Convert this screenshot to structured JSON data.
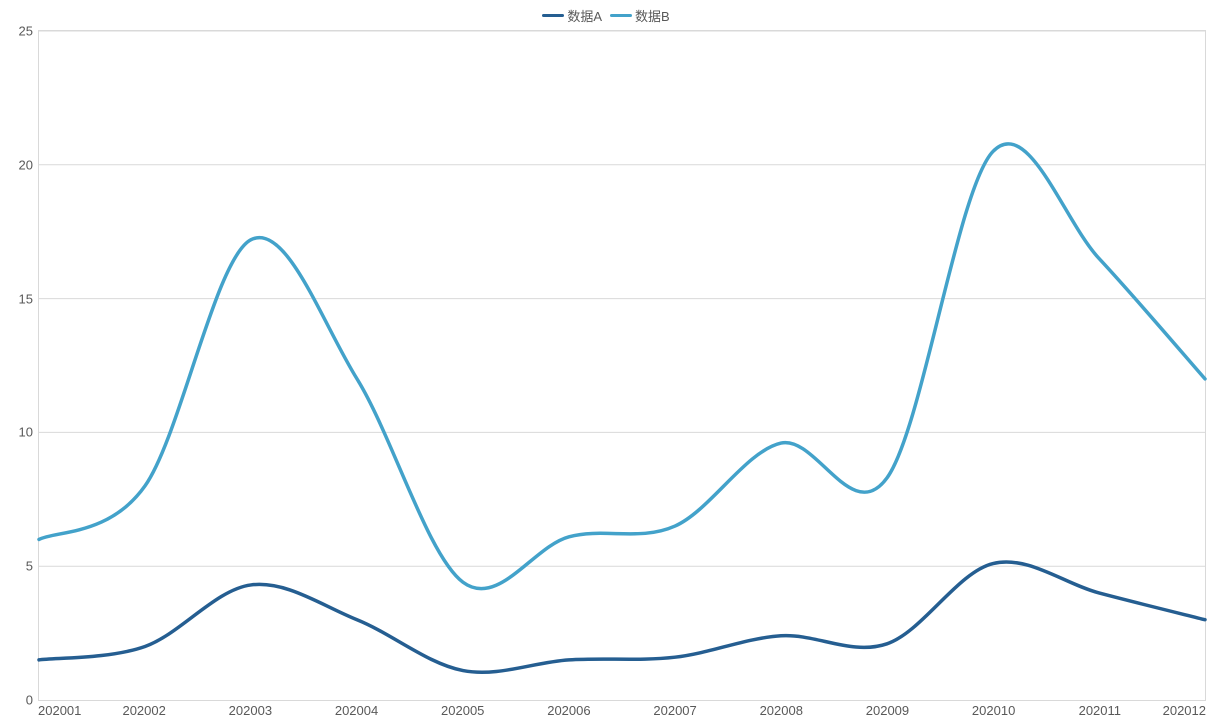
{
  "chart": {
    "type": "line",
    "background_color": "#ffffff",
    "border_color": "#d9d9d9",
    "grid_color": "#d9d9d9",
    "label_color": "#595959",
    "label_fontsize": 13,
    "legend": {
      "position": "top-center",
      "items": [
        {
          "label": "数据A",
          "color": "#255e91"
        },
        {
          "label": "数据B",
          "color": "#43a2ca"
        }
      ]
    },
    "x": {
      "categories": [
        "202001",
        "202002",
        "202003",
        "202004",
        "202005",
        "202006",
        "202007",
        "202008",
        "202009",
        "202010",
        "202011",
        "202012"
      ]
    },
    "y": {
      "min": 0,
      "max": 25,
      "tick_step": 5,
      "ticks": [
        0,
        5,
        10,
        15,
        20,
        25
      ]
    },
    "series": [
      {
        "name": "数据A",
        "color": "#255e91",
        "line_width": 3.5,
        "smooth": true,
        "values": [
          1.5,
          2.0,
          4.3,
          3.0,
          1.1,
          1.5,
          1.6,
          2.4,
          2.1,
          5.1,
          4.0,
          3.0
        ]
      },
      {
        "name": "数据B",
        "color": "#43a2ca",
        "line_width": 3.5,
        "smooth": true,
        "values": [
          6.0,
          8.0,
          17.2,
          12.0,
          4.4,
          6.1,
          6.5,
          9.6,
          8.3,
          20.5,
          16.5,
          12.0
        ]
      }
    ]
  }
}
